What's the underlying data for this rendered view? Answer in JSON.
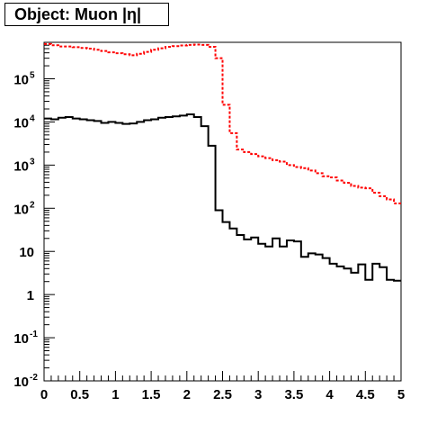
{
  "title": "Object: Muon |η|",
  "chart_data": {
    "type": "line",
    "title": "Object: Muon |η|",
    "xlabel": "",
    "ylabel": "",
    "xlim": [
      0,
      5
    ],
    "ylim": [
      0.01,
      700000
    ],
    "yscale": "log",
    "grid": false,
    "bin_width": 0.1,
    "x_ticks": [
      "0",
      "0.5",
      "1",
      "1.5",
      "2",
      "2.5",
      "3",
      "3.5",
      "4",
      "4.5",
      "5"
    ],
    "y_ticks": [
      {
        "base": "10",
        "exp": "-2",
        "value": 0.01
      },
      {
        "base": "10",
        "exp": "-1",
        "value": 0.1
      },
      {
        "base": "1",
        "exp": "",
        "value": 1
      },
      {
        "base": "10",
        "exp": "",
        "value": 10
      },
      {
        "base": "10",
        "exp": "2",
        "value": 100
      },
      {
        "base": "10",
        "exp": "3",
        "value": 1000
      },
      {
        "base": "10",
        "exp": "4",
        "value": 10000
      },
      {
        "base": "10",
        "exp": "5",
        "value": 100000
      }
    ],
    "series": [
      {
        "color": "#ff0000",
        "style": "dashed",
        "x": [
          0.0,
          0.1,
          0.2,
          0.3,
          0.4,
          0.5,
          0.6,
          0.7,
          0.8,
          0.9,
          1.0,
          1.1,
          1.2,
          1.3,
          1.4,
          1.5,
          1.6,
          1.7,
          1.8,
          1.9,
          2.0,
          2.1,
          2.2,
          2.3,
          2.4,
          2.5,
          2.6,
          2.7,
          2.8,
          2.9,
          3.0,
          3.1,
          3.2,
          3.3,
          3.4,
          3.5,
          3.6,
          3.7,
          3.8,
          3.9,
          4.0,
          4.1,
          4.2,
          4.3,
          4.4,
          4.5,
          4.6,
          4.7,
          4.8,
          4.9
        ],
        "values": [
          640000,
          600000,
          560000,
          560000,
          540000,
          520000,
          500000,
          470000,
          440000,
          410000,
          390000,
          370000,
          350000,
          380000,
          420000,
          470000,
          510000,
          550000,
          570000,
          590000,
          610000,
          620000,
          610000,
          550000,
          300000,
          25000,
          5500,
          2300,
          2000,
          1800,
          1600,
          1450,
          1300,
          1200,
          1000,
          900,
          850,
          750,
          650,
          550,
          520,
          440,
          390,
          330,
          300,
          290,
          230,
          190,
          160,
          130
        ]
      },
      {
        "color": "#000000",
        "style": "solid",
        "x": [
          0.0,
          0.1,
          0.2,
          0.3,
          0.4,
          0.5,
          0.6,
          0.7,
          0.8,
          0.9,
          1.0,
          1.1,
          1.2,
          1.3,
          1.4,
          1.5,
          1.6,
          1.7,
          1.8,
          1.9,
          2.0,
          2.1,
          2.2,
          2.3,
          2.4,
          2.5,
          2.6,
          2.7,
          2.8,
          2.9,
          3.0,
          3.1,
          3.2,
          3.3,
          3.4,
          3.5,
          3.6,
          3.7,
          3.8,
          3.9,
          4.0,
          4.1,
          4.2,
          4.3,
          4.4,
          4.5,
          4.6,
          4.7,
          4.8,
          4.9
        ],
        "values": [
          12000,
          11500,
          12500,
          13000,
          12000,
          11500,
          11000,
          10500,
          9500,
          10000,
          9500,
          9000,
          9200,
          10000,
          11000,
          11500,
          12500,
          13000,
          13500,
          14000,
          15000,
          13000,
          8000,
          2800,
          90,
          48,
          34,
          24,
          19,
          21,
          15,
          13,
          20,
          13,
          18,
          17,
          7.5,
          9,
          8.5,
          7,
          5.2,
          4.5,
          4,
          3.2,
          5,
          2.2,
          5.2,
          4.3,
          2.2,
          2.1
        ]
      }
    ]
  }
}
